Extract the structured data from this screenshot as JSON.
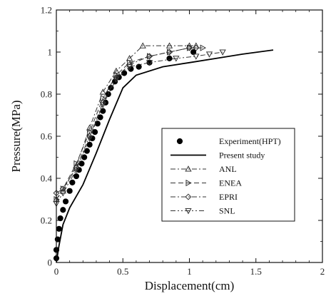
{
  "chart_data": {
    "type": "line",
    "xlabel": "Displacement(cm)",
    "ylabel": "Pressure(MPa)",
    "xlim": [
      0,
      2
    ],
    "ylim": [
      0,
      1.2
    ],
    "x_ticks": [
      "0",
      "0.5",
      "1",
      "1.5",
      "2"
    ],
    "y_ticks": [
      "0",
      "0.2",
      "0.4",
      "0.6",
      "0.8",
      "1",
      "1.2"
    ],
    "legend_position": "right-middle",
    "series": [
      {
        "name": "Experiment(HPT)",
        "style": "markers",
        "marker": "filled-circle",
        "color": "#000000",
        "points": [
          [
            0,
            0.02
          ],
          [
            0,
            0.06
          ],
          [
            0.01,
            0.11
          ],
          [
            0.02,
            0.16
          ],
          [
            0.03,
            0.21
          ],
          [
            0.05,
            0.25
          ],
          [
            0.07,
            0.29
          ],
          [
            0.1,
            0.34
          ],
          [
            0.12,
            0.38
          ],
          [
            0.15,
            0.41
          ],
          [
            0.17,
            0.44
          ],
          [
            0.19,
            0.47
          ],
          [
            0.21,
            0.5
          ],
          [
            0.23,
            0.53
          ],
          [
            0.25,
            0.56
          ],
          [
            0.27,
            0.59
          ],
          [
            0.29,
            0.62
          ],
          [
            0.31,
            0.66
          ],
          [
            0.33,
            0.69
          ],
          [
            0.35,
            0.72
          ],
          [
            0.37,
            0.76
          ],
          [
            0.39,
            0.8
          ],
          [
            0.41,
            0.83
          ],
          [
            0.44,
            0.86
          ],
          [
            0.47,
            0.88
          ],
          [
            0.51,
            0.9
          ],
          [
            0.56,
            0.92
          ],
          [
            0.62,
            0.93
          ],
          [
            0.7,
            0.95
          ],
          [
            0.85,
            0.97
          ],
          [
            1.03,
            1.0
          ]
        ]
      },
      {
        "name": "Present study",
        "style": "solid",
        "color": "#000000",
        "points": [
          [
            0,
            0
          ],
          [
            0.02,
            0.08
          ],
          [
            0.05,
            0.18
          ],
          [
            0.1,
            0.26
          ],
          [
            0.2,
            0.37
          ],
          [
            0.3,
            0.52
          ],
          [
            0.4,
            0.68
          ],
          [
            0.5,
            0.83
          ],
          [
            0.6,
            0.89
          ],
          [
            0.8,
            0.93
          ],
          [
            1.0,
            0.95
          ],
          [
            1.2,
            0.97
          ],
          [
            1.4,
            0.99
          ],
          [
            1.63,
            1.01
          ]
        ]
      },
      {
        "name": "ANL",
        "style": "dash-dot",
        "marker": "triangle-up",
        "color": "#333333",
        "points": [
          [
            0,
            0.3
          ],
          [
            0.05,
            0.34
          ],
          [
            0.15,
            0.46
          ],
          [
            0.25,
            0.64
          ],
          [
            0.35,
            0.81
          ],
          [
            0.45,
            0.91
          ],
          [
            0.55,
            0.97
          ],
          [
            0.65,
            1.03
          ],
          [
            0.85,
            1.03
          ],
          [
            1.0,
            1.03
          ],
          [
            1.05,
            1.03
          ]
        ]
      },
      {
        "name": "ENEA",
        "style": "dashed",
        "marker": "triangle-right",
        "color": "#333333",
        "points": [
          [
            0,
            0.3
          ],
          [
            0.05,
            0.35
          ],
          [
            0.15,
            0.47
          ],
          [
            0.25,
            0.62
          ],
          [
            0.35,
            0.78
          ],
          [
            0.45,
            0.89
          ],
          [
            0.55,
            0.95
          ],
          [
            0.7,
            0.98
          ],
          [
            0.85,
            1.0
          ],
          [
            1.0,
            1.02
          ],
          [
            1.1,
            1.02
          ]
        ]
      },
      {
        "name": "EPRI",
        "style": "dash-dot",
        "marker": "diamond",
        "color": "#333333",
        "points": [
          [
            0,
            0.33
          ],
          [
            0.05,
            0.35
          ],
          [
            0.15,
            0.45
          ],
          [
            0.25,
            0.6
          ],
          [
            0.35,
            0.76
          ],
          [
            0.45,
            0.88
          ],
          [
            0.55,
            0.94
          ],
          [
            0.7,
            0.98
          ],
          [
            0.85,
            1.0
          ],
          [
            1.0,
            1.02
          ],
          [
            1.05,
            1.02
          ]
        ]
      },
      {
        "name": "SNL",
        "style": "dash-dot-dot",
        "marker": "triangle-down",
        "color": "#333333",
        "points": [
          [
            0,
            0.28
          ],
          [
            0.05,
            0.33
          ],
          [
            0.15,
            0.44
          ],
          [
            0.25,
            0.59
          ],
          [
            0.35,
            0.75
          ],
          [
            0.45,
            0.87
          ],
          [
            0.55,
            0.93
          ],
          [
            0.7,
            0.95
          ],
          [
            0.9,
            0.97
          ],
          [
            1.05,
            0.98
          ],
          [
            1.15,
            0.99
          ],
          [
            1.25,
            1.0
          ]
        ]
      }
    ]
  }
}
